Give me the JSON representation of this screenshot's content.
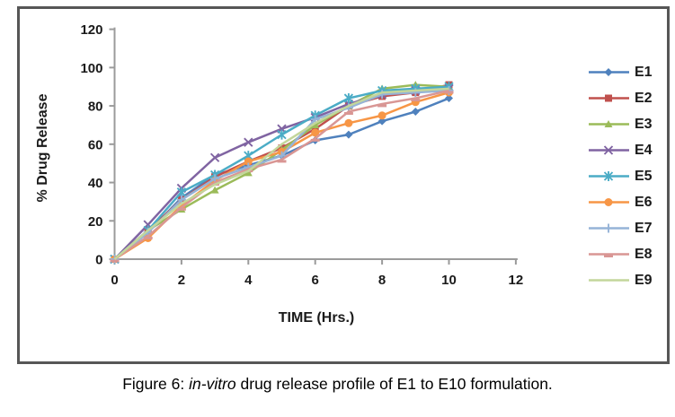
{
  "figure": {
    "caption_prefix": "Figure 6: ",
    "caption_italic": "in-vitro",
    "caption_suffix": " drug release profile of E1 to E10 formulation."
  },
  "chart_data": {
    "type": "line",
    "title": "",
    "xlabel": "TIME (Hrs.)",
    "ylabel": "% Drug Release",
    "xlim": [
      0,
      12
    ],
    "ylim": [
      0,
      120
    ],
    "x_ticks": [
      0,
      2,
      4,
      6,
      8,
      10,
      12
    ],
    "y_ticks": [
      0,
      20,
      40,
      60,
      80,
      100,
      120
    ],
    "grid": false,
    "legend_position": "right",
    "x": [
      0,
      1,
      2,
      3,
      4,
      5,
      6,
      7,
      8,
      9,
      10
    ],
    "series": [
      {
        "name": "E1",
        "color": "#4F81BD",
        "marker": "diamond",
        "values": [
          0,
          14,
          32,
          44,
          49,
          54,
          62,
          65,
          72,
          77,
          84
        ]
      },
      {
        "name": "E2",
        "color": "#C0504D",
        "marker": "square",
        "values": [
          0,
          15,
          31,
          43,
          51,
          58,
          68,
          80,
          85,
          87,
          91
        ]
      },
      {
        "name": "E3",
        "color": "#9BBB59",
        "marker": "triangle",
        "values": [
          0,
          15,
          26,
          36,
          45,
          57,
          70,
          80,
          89,
          91,
          90
        ]
      },
      {
        "name": "E4",
        "color": "#8064A2",
        "marker": "x",
        "values": [
          0,
          18,
          37,
          53,
          61,
          68,
          74,
          81,
          86,
          88,
          89
        ]
      },
      {
        "name": "E5",
        "color": "#4BACC6",
        "marker": "asterisk",
        "values": [
          0,
          15,
          35,
          44,
          54,
          65,
          75,
          84,
          88,
          89,
          90
        ]
      },
      {
        "name": "E6",
        "color": "#F79646",
        "marker": "circle",
        "values": [
          0,
          11,
          28,
          41,
          51,
          56,
          66,
          71,
          75,
          82,
          87
        ]
      },
      {
        "name": "E7",
        "color": "#95B3D7",
        "marker": "plus",
        "values": [
          0,
          14,
          31,
          42,
          48,
          54,
          73,
          79,
          86,
          87,
          88
        ]
      },
      {
        "name": "E8",
        "color": "#D99694",
        "marker": "dash",
        "values": [
          0,
          12,
          27,
          40,
          47,
          52,
          63,
          77,
          81,
          84,
          88
        ]
      },
      {
        "name": "E9",
        "color": "#C3D69B",
        "marker": "none",
        "values": [
          0,
          15,
          29,
          39,
          46,
          60,
          71,
          80,
          87,
          88,
          89
        ]
      }
    ]
  }
}
